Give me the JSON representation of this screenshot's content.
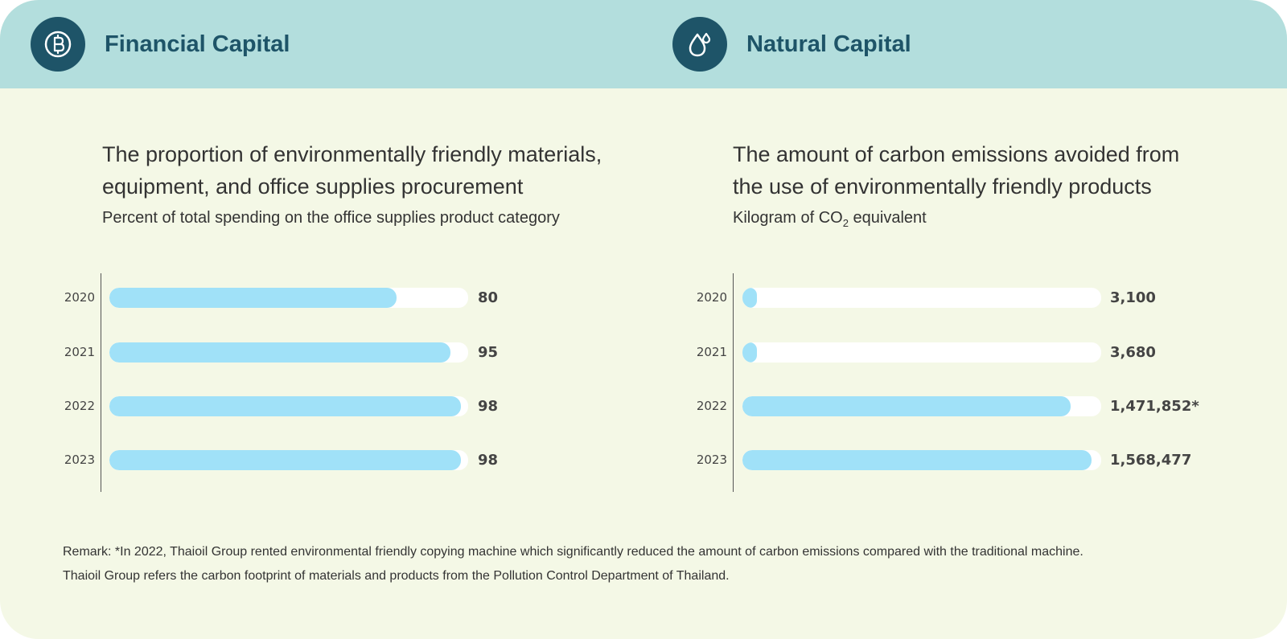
{
  "financial": {
    "header_title": "Financial Capital",
    "icon": "baht-coin-icon",
    "title_line1": "The proportion of environmentally friendly materials,",
    "title_line2": "equipment, and office supplies procurement",
    "subtitle": "Percent of total spending on the office supplies product category"
  },
  "natural": {
    "header_title": "Natural Capital",
    "icon": "water-drop-icon",
    "title_line1": "The amount of carbon emissions avoided from",
    "title_line2": "the use of environmentally friendly products",
    "subtitle_prefix": "Kilogram of CO",
    "subtitle_sub": "2",
    "subtitle_suffix": " equivalent"
  },
  "chart_data": [
    {
      "type": "bar",
      "orientation": "horizontal",
      "title": "The proportion of environmentally friendly materials, equipment, and office supplies procurement",
      "subtitle": "Percent of total spending on the office supplies product category",
      "categories": [
        "2020",
        "2021",
        "2022",
        "2023"
      ],
      "values": [
        80,
        95,
        98,
        98
      ],
      "labels": [
        "80",
        "95",
        "98",
        "98"
      ],
      "xlim": [
        0,
        100
      ]
    },
    {
      "type": "bar",
      "orientation": "horizontal",
      "title": "The amount of carbon emissions avoided from the use of environmentally friendly products",
      "subtitle": "Kilogram of CO2 equivalent",
      "categories": [
        "2020",
        "2021",
        "2022",
        "2023"
      ],
      "values": [
        3100,
        3680,
        1471852,
        1568477
      ],
      "labels": [
        "3,100",
        "3,680",
        "1,471,852*",
        "1,568,477"
      ],
      "xlim": [
        0,
        1610000
      ]
    }
  ],
  "remark": {
    "line1": "Remark:  *In 2022, Thaioil Group rented environmental friendly copying machine which significantly reduced the amount of carbon emissions compared with the traditional machine.",
    "line2": "Thaioil Group refers the carbon footprint of materials and products from the Pollution Control Department of Thailand."
  },
  "colors": {
    "header_bg": "#b3dedd",
    "card_bg": "#f4f8e6",
    "icon_bg": "#1e5468",
    "bar_fill": "#a0e1f8",
    "bar_track": "#ffffff"
  }
}
